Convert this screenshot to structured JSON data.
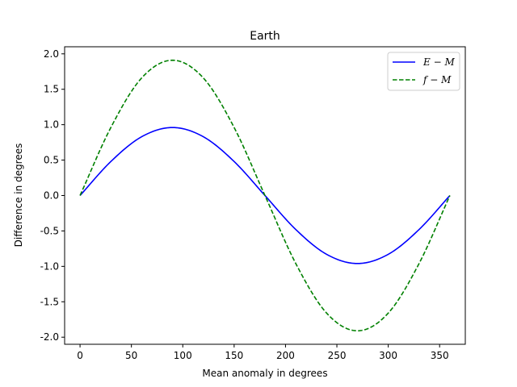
{
  "chart_data": {
    "type": "line",
    "title": "Earth",
    "xlabel": "Mean anomaly in degrees",
    "ylabel": "Difference in degrees",
    "xlim": [
      -15,
      375
    ],
    "ylim": [
      -2.1,
      2.1
    ],
    "xticks": [
      0,
      50,
      100,
      150,
      200,
      250,
      300,
      350
    ],
    "yticks": [
      -2.0,
      -1.5,
      -1.0,
      -0.5,
      0.0,
      0.5,
      1.0,
      1.5,
      2.0
    ],
    "ytick_labels": [
      "-2.0",
      "-1.5",
      "-1.0",
      "-0.5",
      "0.0",
      "0.5",
      "1.0",
      "1.5",
      "2.0"
    ],
    "xtick_labels": [
      "0",
      "50",
      "100",
      "150",
      "200",
      "250",
      "300",
      "350"
    ],
    "grid": false,
    "legend_position": "top-right",
    "x": [
      0,
      30,
      60,
      90,
      120,
      150,
      180,
      210,
      240,
      270,
      300,
      330,
      360
    ],
    "series": [
      {
        "name": "E − M",
        "color": "#0000ff",
        "style": "solid",
        "values": [
          0.0,
          0.48,
          0.83,
          0.96,
          0.83,
          0.48,
          0.0,
          -0.48,
          -0.83,
          -0.96,
          -0.83,
          -0.48,
          0.0
        ]
      },
      {
        "name": "f − M",
        "color": "#008000",
        "style": "dashed",
        "values": [
          0.0,
          0.96,
          1.66,
          1.91,
          1.66,
          0.96,
          0.0,
          -0.96,
          -1.66,
          -1.91,
          -1.66,
          -0.96,
          0.0
        ]
      }
    ]
  }
}
